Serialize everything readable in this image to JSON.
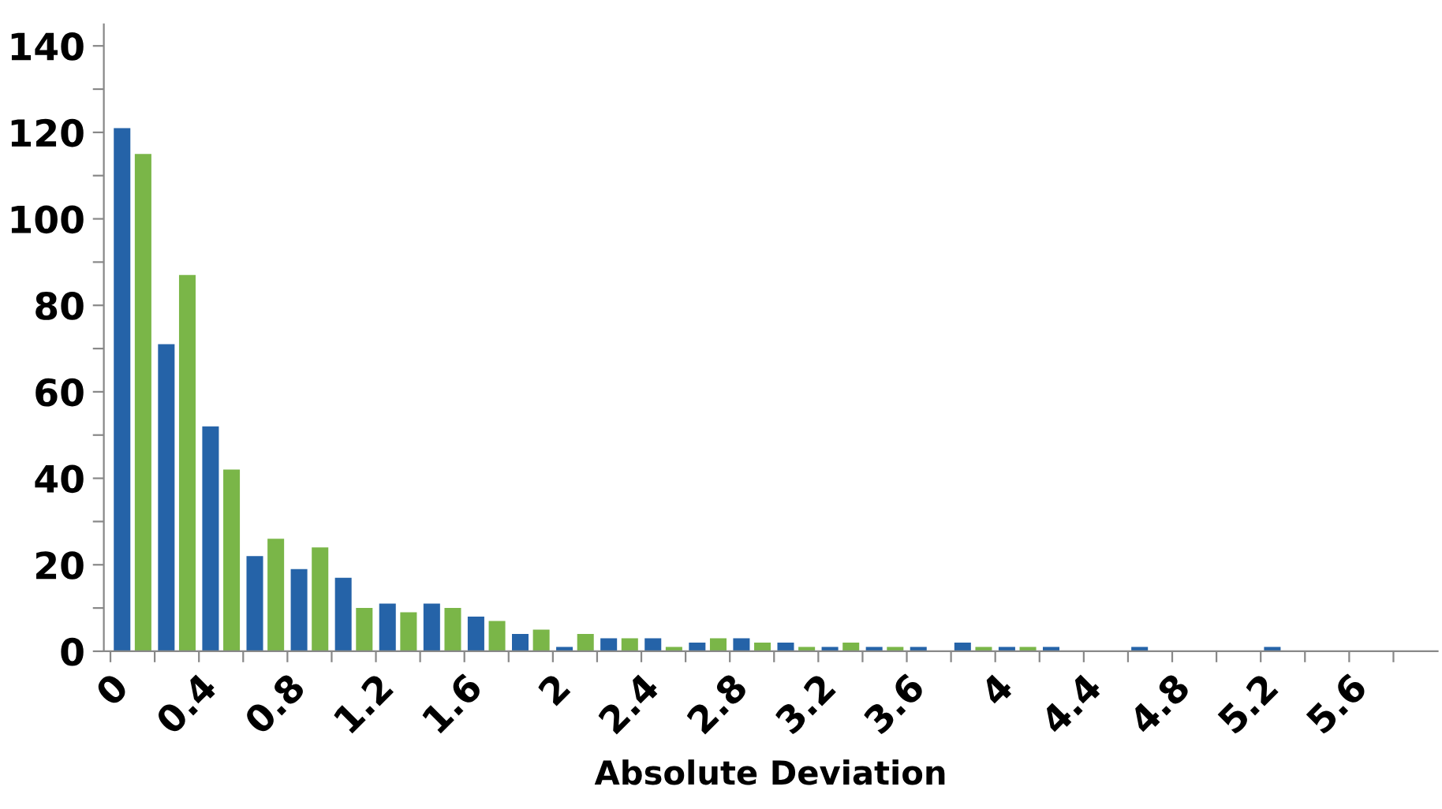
{
  "chart_data": {
    "type": "bar",
    "xlabel": "Absolute Deviation",
    "x": [
      0.1,
      0.3,
      0.5,
      0.7,
      0.9,
      1.1,
      1.3,
      1.5,
      1.7,
      1.9,
      2.1,
      2.3,
      2.5,
      2.7,
      2.9,
      3.1,
      3.3,
      3.5,
      3.7,
      3.9,
      4.1,
      4.3,
      4.5,
      4.7,
      4.9,
      5.1,
      5.3,
      5.5,
      5.7
    ],
    "series": [
      {
        "color": "#2563a8",
        "values": [
          121,
          71,
          52,
          22,
          19,
          17,
          11,
          11,
          8,
          4,
          1,
          3,
          3,
          2,
          3,
          2,
          1,
          1,
          1,
          2,
          1,
          1,
          0,
          1,
          0,
          0,
          1,
          0,
          0
        ]
      },
      {
        "color": "#7ab648",
        "values": [
          115,
          87,
          42,
          26,
          24,
          10,
          9,
          10,
          7,
          5,
          4,
          3,
          1,
          3,
          2,
          1,
          2,
          1,
          0,
          1,
          1,
          0,
          0,
          0,
          0,
          0,
          0,
          0,
          0
        ]
      }
    ],
    "xlim": [
      -0.03,
      6.0
    ],
    "xticks": [
      0,
      {
        "value": 0.2,
        "label": null
      },
      0.4,
      {
        "value": 0.6,
        "label": null
      },
      0.8,
      {
        "value": 1.0,
        "label": null
      },
      1.2,
      {
        "value": 1.4,
        "label": null
      },
      1.6,
      {
        "value": 1.8,
        "label": null
      },
      2,
      {
        "value": 2.2,
        "label": null
      },
      2.4,
      {
        "value": 2.6,
        "label": null
      },
      2.8,
      {
        "value": 3.0,
        "label": null
      },
      3.2,
      {
        "value": 3.4,
        "label": null
      },
      3.6,
      {
        "value": 3.8,
        "label": null
      },
      4,
      {
        "value": 4.2,
        "label": null
      },
      4.4,
      {
        "value": 4.6,
        "label": null
      },
      4.8,
      {
        "value": 5.0,
        "label": null
      },
      5.2,
      {
        "value": 5.4,
        "label": null
      },
      5.6,
      {
        "value": 5.8,
        "label": null
      }
    ],
    "ylim": [
      0,
      145
    ],
    "yticks": [
      0,
      {
        "value": 10,
        "label": null
      },
      20,
      {
        "value": 30,
        "label": null
      },
      40,
      {
        "value": 50,
        "label": null
      },
      60,
      {
        "value": 70,
        "label": null
      },
      80,
      {
        "value": 90,
        "label": null
      },
      100,
      {
        "value": 110,
        "label": null
      },
      120,
      {
        "value": 130,
        "label": null
      },
      140
    ],
    "grid": false,
    "legend": false
  }
}
